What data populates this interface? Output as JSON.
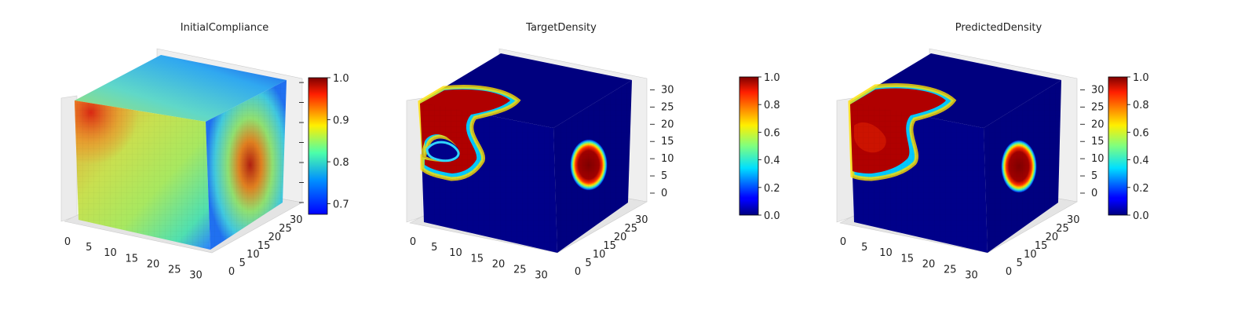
{
  "chart_data": [
    {
      "type": "heatmap",
      "subtype": "3d-voxel-cube",
      "title": "InitialCompliance",
      "grid_size": [
        32,
        32,
        32
      ],
      "x_ticks": [
        0,
        5,
        10,
        15,
        20,
        25,
        30
      ],
      "y_ticks": [
        0,
        5,
        10,
        15,
        20,
        25,
        30
      ],
      "z_ticks": [],
      "colorbar": {
        "colormap": "jet",
        "range": [
          0.675,
          1.0
        ],
        "ticks": [
          "0.7",
          "0.8",
          "0.9",
          "1.0"
        ]
      },
      "description_values": {
        "min": 0.68,
        "max": 1.0
      }
    },
    {
      "type": "heatmap",
      "subtype": "3d-voxel-cube",
      "title": "TargetDensity",
      "grid_size": [
        32,
        32,
        32
      ],
      "x_ticks": [
        0,
        5,
        10,
        15,
        20,
        25,
        30
      ],
      "y_ticks": [
        0,
        5,
        10,
        15,
        20,
        25,
        30
      ],
      "z_ticks": [
        0,
        5,
        10,
        15,
        20,
        25,
        30
      ],
      "colorbar": {
        "colormap": "jet",
        "range": [
          0.0,
          1.0
        ],
        "ticks": [
          "0.0",
          "0.2",
          "0.4",
          "0.6",
          "0.8",
          "1.0"
        ]
      }
    },
    {
      "type": "heatmap",
      "subtype": "3d-voxel-cube",
      "title": "PredictedDensity",
      "grid_size": [
        32,
        32,
        32
      ],
      "x_ticks": [
        0,
        5,
        10,
        15,
        20,
        25,
        30
      ],
      "y_ticks": [
        0,
        5,
        10,
        15,
        20,
        25,
        30
      ],
      "z_ticks": [
        0,
        5,
        10,
        15,
        20,
        25,
        30
      ],
      "colorbar": {
        "colormap": "jet",
        "range": [
          0.0,
          1.0
        ],
        "ticks": [
          "0.0",
          "0.2",
          "0.4",
          "0.6",
          "0.8",
          "1.0"
        ]
      }
    }
  ]
}
